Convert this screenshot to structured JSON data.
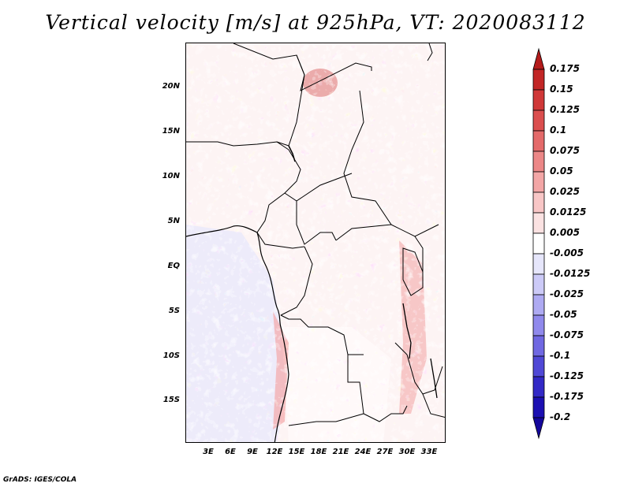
{
  "title": "Vertical velocity [m/s] at 925hPa, VT: 2020083112",
  "footer": "GrADS: IGES/COLA",
  "map": {
    "region": "Central Africa",
    "lat_labels": [
      "20N",
      "15N",
      "10N",
      "5N",
      "EQ",
      "5S",
      "10S",
      "15S"
    ],
    "lon_labels": [
      "3E",
      "6E",
      "9E",
      "12E",
      "15E",
      "18E",
      "21E",
      "24E",
      "27E",
      "30E",
      "33E"
    ]
  },
  "colorbar": {
    "labels": [
      "0.175",
      "0.15",
      "0.125",
      "0.1",
      "0.075",
      "0.05",
      "0.025",
      "0.0125",
      "0.005",
      "-0.005",
      "-0.0125",
      "-0.025",
      "-0.05",
      "-0.075",
      "-0.1",
      "-0.125",
      "-0.175",
      "-0.2"
    ],
    "colors": [
      "#b41b1b",
      "#c22626",
      "#d03838",
      "#db4e4e",
      "#e46a6a",
      "#ec8787",
      "#f3a6a6",
      "#f8c6c6",
      "#fbe2e2",
      "#ffffff",
      "#e6e6fb",
      "#cccaf7",
      "#aeaaf2",
      "#9089ec",
      "#7068e2",
      "#5048d6",
      "#3329c6",
      "#1c10b2",
      "#14079c"
    ]
  }
}
